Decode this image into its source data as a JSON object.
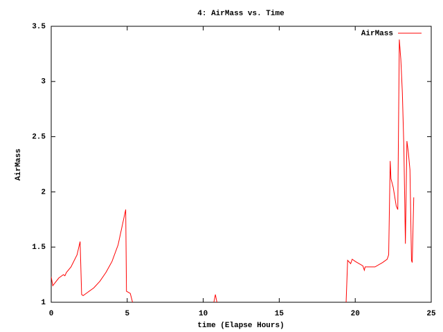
{
  "chart_data": {
    "type": "line",
    "title": "4: AirMass vs. Time",
    "xlabel": "time (Elapse Hours)",
    "ylabel": "AirMass",
    "xlim": [
      0,
      25
    ],
    "xticks": [
      0,
      5,
      10,
      15,
      20,
      25
    ],
    "ylim": [
      1,
      3.5
    ],
    "yticks": [
      1,
      1.5,
      2,
      2.5,
      3,
      3.5
    ],
    "legend": "upper right",
    "x": [
      0,
      0.1,
      0.5,
      0.8,
      0.9,
      1.0,
      1.3,
      1.7,
      1.9,
      2.0,
      2.1,
      2.4,
      2.8,
      3.2,
      3.6,
      4.0,
      4.4,
      4.9,
      4.95,
      5.2,
      5.35,
      8.0,
      10.7,
      10.8,
      10.9,
      15.0,
      19.4,
      19.5,
      19.7,
      19.8,
      20.0,
      20.5,
      20.6,
      20.65,
      21.3,
      21.8,
      22.1,
      22.2,
      22.3,
      22.35,
      22.5,
      22.7,
      22.8,
      22.9,
      23.0,
      23.1,
      23.2,
      23.3,
      23.4,
      23.5,
      23.6,
      23.7,
      23.75,
      23.85
    ],
    "series": [
      {
        "name": "AirMass",
        "color": "#ff0000",
        "values": [
          1.23,
          1.15,
          1.22,
          1.25,
          1.24,
          1.27,
          1.32,
          1.43,
          1.55,
          1.07,
          1.06,
          1.09,
          1.13,
          1.19,
          1.27,
          1.37,
          1.52,
          1.84,
          1.1,
          1.08,
          1.0,
          null,
          1.0,
          1.07,
          1.0,
          null,
          1.0,
          1.38,
          1.35,
          1.39,
          1.37,
          1.33,
          1.29,
          1.32,
          1.32,
          1.36,
          1.39,
          1.43,
          2.28,
          2.12,
          2.04,
          1.87,
          1.84,
          3.38,
          3.2,
          2.9,
          2.4,
          1.53,
          2.46,
          2.35,
          2.2,
          1.38,
          1.36,
          1.95
        ]
      }
    ]
  }
}
